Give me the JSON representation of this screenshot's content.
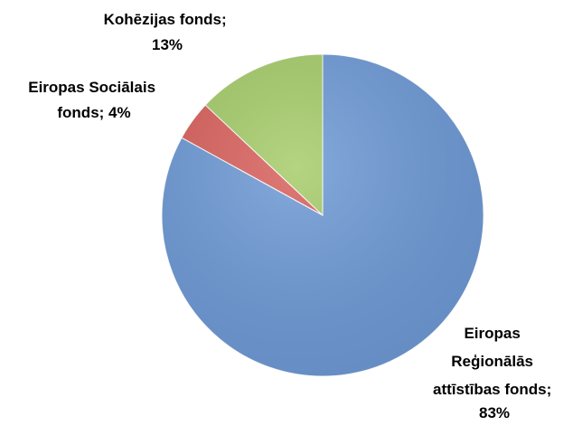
{
  "chart_data": {
    "type": "pie",
    "title": "",
    "start": "12 o'clock",
    "direction": "clockwise",
    "legend": "none",
    "slices": [
      {
        "key": "erdf",
        "value": 83,
        "color": "#6E9AD6",
        "label_lines": [
          "Eiropas",
          "Reģionālās",
          "attīstības fonds;",
          "83%"
        ]
      },
      {
        "key": "esf",
        "value": 4,
        "color": "#D9615D",
        "label_lines": [
          "Eiropas Sociālais",
          "fonds; 4%"
        ]
      },
      {
        "key": "cf",
        "value": 13,
        "color": "#A6CC6A",
        "label_lines": [
          "Kohēzijas fonds;",
          "13%"
        ]
      }
    ]
  }
}
